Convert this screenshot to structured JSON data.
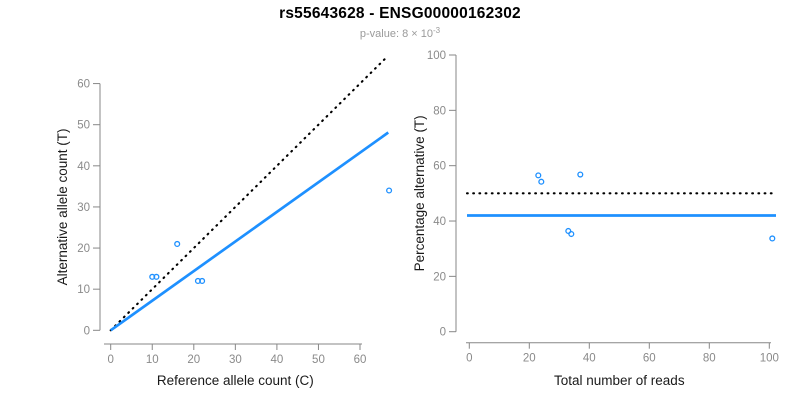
{
  "header": {
    "title": "rs55643628 - ENSG00000162302",
    "subtitle_prefix": "p-value: 8 × 10",
    "subtitle_exponent": "-3"
  },
  "colors": {
    "accent_blue": "#1E90FF",
    "line_black": "#000000",
    "axis_gray": "#878787",
    "tick_label_gray": "#8a8a8a",
    "axis_title_dark": "#1a1a1a"
  },
  "chart_data": [
    {
      "type": "scatter",
      "panel": "left",
      "xlabel": "Reference allele count (C)",
      "ylabel": "Alternative allele count (T)",
      "xlim": [
        0,
        67
      ],
      "ylim": [
        0,
        67
      ],
      "xticks": [
        0,
        10,
        20,
        30,
        40,
        50,
        60
      ],
      "yticks": [
        0,
        10,
        20,
        30,
        40,
        50,
        60
      ],
      "grid": false,
      "legend": "none",
      "points": [
        [
          10,
          13
        ],
        [
          11,
          13
        ],
        [
          16,
          21
        ],
        [
          21,
          12
        ],
        [
          22,
          12
        ],
        [
          67,
          34
        ]
      ],
      "lines": [
        {
          "name": "identity-line",
          "type": "abline",
          "slope": 1,
          "intercept": 0,
          "style": "dotted",
          "color": "#000000"
        },
        {
          "name": "fit-line",
          "type": "abline",
          "slope": 0.72,
          "intercept": 0,
          "style": "solid",
          "color": "#1E90FF"
        }
      ]
    },
    {
      "type": "scatter",
      "panel": "right",
      "xlabel": "Total number of reads",
      "ylabel": "Percentage alternative (T)",
      "xlim": [
        0,
        104
      ],
      "ylim": [
        0,
        100
      ],
      "xticks": [
        0,
        20,
        40,
        60,
        80,
        100
      ],
      "yticks": [
        0,
        20,
        40,
        60,
        80,
        100
      ],
      "grid": false,
      "legend": "none",
      "points": [
        [
          23,
          56.5
        ],
        [
          24,
          54.2
        ],
        [
          37,
          56.8
        ],
        [
          33,
          36.4
        ],
        [
          34,
          35.3
        ],
        [
          101,
          33.7
        ]
      ],
      "lines": [
        {
          "name": "expected-percentage-line",
          "type": "hline",
          "y": 50,
          "style": "dotted",
          "color": "#000000"
        },
        {
          "name": "observed-percentage-line",
          "type": "hline",
          "y": 42,
          "style": "solid",
          "color": "#1E90FF"
        }
      ]
    }
  ]
}
